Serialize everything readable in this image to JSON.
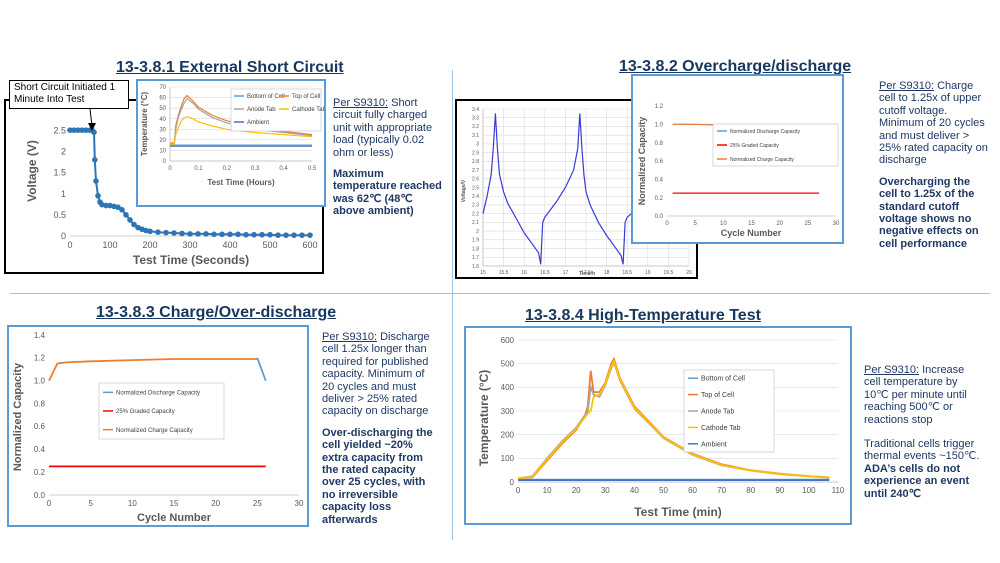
{
  "sections": {
    "s1": {
      "title": "13-3.8.1 External Short Circuit",
      "desc_prefix": "Per S9310:",
      "desc_text": " Short circuit fully charged unit with appropriate load (typically 0.02 ohm or less)",
      "desc_bold": "Maximum temperature reached was 62℃ (48℃ above ambient)"
    },
    "s2": {
      "title": "13-3.8.2 Overcharge/discharge",
      "desc_prefix": "Per S9310:",
      "desc_text": " Charge cell to 1.25x of upper cutoff voltage. Minimum of 20 cycles and must deliver > 25% rated capacity on discharge",
      "desc_bold": "Overcharging the cell to 1.25x of the standard cutoff voltage shows no negative effects on cell performance"
    },
    "s3": {
      "title": "13-3.8.3 Charge/Over-discharge",
      "desc_prefix": "Per S9310:",
      "desc_text": " Discharge cell 1.25x longer than required for published capacity. Minimum of 20 cycles and must deliver > 25% rated capacity on discharge",
      "desc_bold": "Over-discharging the cell yielded ~20% extra capacity from the rated capacity over 25 cycles, with no irreversible capacity loss afterwards"
    },
    "s4": {
      "title": "13-3.8.4 High-Temperature  Test",
      "desc_prefix": "Per S9310:",
      "desc_text": " Increase cell temperature by 10℃ per minute until reaching 500℃ or reactions stop",
      "desc_text2": "Traditional  cells trigger thermal events  ~150℃.",
      "desc_bold": "ADA’s  cells do not experience an event until 240℃"
    }
  },
  "callout": "Short Circuit Initiated 1 Minute Into Test",
  "colors": {
    "bottom": "#5b9bd5",
    "top": "#ed7d31",
    "anode": "#a5a5a5",
    "cathode": "#ffc000",
    "ambient": "#4472c4",
    "graded": "#ff0000",
    "voltage": "#2e75b6",
    "overvoltage": "#3a3ad6"
  },
  "chart_data": [
    {
      "id": "voltage",
      "type": "scatter",
      "xlabel": "Test Time (Seconds)",
      "ylabel": "Voltage (V)",
      "xlim": [
        0,
        600
      ],
      "ylim": [
        0,
        3
      ],
      "xticks": [
        "0",
        "100",
        "200",
        "300",
        "400",
        "500",
        "600"
      ],
      "yticks": [
        "0",
        "0.5",
        "1",
        "1.5",
        "2",
        "2.5"
      ],
      "series": [
        {
          "x": [
            0,
            10,
            20,
            30,
            40,
            50,
            55,
            60,
            62,
            65,
            70,
            75,
            80,
            90,
            100,
            110,
            120,
            130,
            140,
            150,
            160,
            170,
            180,
            190,
            200,
            220,
            240,
            260,
            280,
            300,
            320,
            340,
            360,
            380,
            400,
            420,
            440,
            460,
            480,
            500,
            520,
            540,
            560,
            580,
            600
          ],
          "y": [
            2.5,
            2.5,
            2.5,
            2.5,
            2.5,
            2.5,
            2.5,
            2.45,
            1.8,
            1.3,
            0.95,
            0.8,
            0.74,
            0.72,
            0.72,
            0.7,
            0.68,
            0.62,
            0.5,
            0.38,
            0.27,
            0.2,
            0.16,
            0.13,
            0.11,
            0.09,
            0.08,
            0.07,
            0.06,
            0.05,
            0.05,
            0.05,
            0.04,
            0.04,
            0.04,
            0.04,
            0.03,
            0.03,
            0.03,
            0.03,
            0.02,
            0.02,
            0.02,
            0.02,
            0.02
          ]
        }
      ]
    },
    {
      "id": "shortTemp",
      "type": "line",
      "xlabel": "Test Time (Hours)",
      "ylabel": "Temperature (°C)",
      "xlim": [
        0,
        0.5
      ],
      "ylim": [
        0,
        70
      ],
      "xticks": [
        "0",
        "0.1",
        "0.2",
        "0.3",
        "0.4",
        "0.5"
      ],
      "yticks": [
        "0",
        "10",
        "20",
        "30",
        "40",
        "50",
        "60",
        "70"
      ],
      "series": [
        {
          "name": "Bottom of Cell",
          "key": "bottom",
          "x": [
            0,
            0.015,
            0.02,
            0.5
          ],
          "y": [
            15,
            15,
            15,
            15
          ]
        },
        {
          "name": "Top of Cell",
          "key": "top",
          "x": [
            0,
            0.015,
            0.02,
            0.03,
            0.04,
            0.05,
            0.06,
            0.08,
            0.1,
            0.15,
            0.2,
            0.3,
            0.4,
            0.5
          ],
          "y": [
            17,
            17,
            33,
            44,
            52,
            59,
            62,
            57,
            51,
            43,
            38,
            32,
            28,
            25
          ]
        },
        {
          "name": "Anode Tab",
          "key": "anode",
          "x": [
            0,
            0.015,
            0.02,
            0.03,
            0.04,
            0.05,
            0.06,
            0.08,
            0.1,
            0.15,
            0.2,
            0.3,
            0.4,
            0.5
          ],
          "y": [
            16,
            16,
            30,
            42,
            49,
            55,
            59,
            55,
            49,
            41,
            36,
            30,
            27,
            24
          ]
        },
        {
          "name": "Cathode Tab",
          "key": "cathode",
          "x": [
            0,
            0.015,
            0.02,
            0.03,
            0.04,
            0.05,
            0.06,
            0.08,
            0.1,
            0.15,
            0.2,
            0.3,
            0.4,
            0.5
          ],
          "y": [
            16,
            16,
            25,
            32,
            38,
            41,
            42,
            40,
            37,
            33,
            30,
            27,
            25,
            23
          ]
        },
        {
          "name": "Ambient",
          "key": "ambient",
          "x": [
            0,
            0.5
          ],
          "y": [
            14,
            14
          ]
        }
      ]
    },
    {
      "id": "overVolt",
      "type": "line",
      "xlabel": "Time/h",
      "ylabel": "Voltage/V",
      "xlim": [
        15,
        20
      ],
      "ylim": [
        1.6,
        3.4
      ],
      "xticks": [
        "15",
        "15.5",
        "16",
        "16.5",
        "17",
        "17.5",
        "18",
        "18.5",
        "19",
        "19.5",
        "20"
      ],
      "yticks": [
        "1.6",
        "1.7",
        "1.8",
        "1.9",
        "2",
        "2.1",
        "2.2",
        "2.3",
        "2.4",
        "2.5",
        "2.6",
        "2.7",
        "2.8",
        "2.9",
        "3",
        "3.1",
        "3.2",
        "3.3",
        "3.4"
      ],
      "series": [
        {
          "key": "overvoltage",
          "x": [
            15,
            15.1,
            15.2,
            15.25,
            15.3,
            15.35,
            15.4,
            15.5,
            15.6,
            15.8,
            16.0,
            16.2,
            16.35,
            16.4,
            16.45,
            16.5,
            16.6,
            16.8,
            17.0,
            17.2,
            17.3,
            17.35,
            17.4,
            17.45,
            17.5,
            17.6,
            17.8,
            18.0,
            18.2,
            18.35,
            18.4,
            18.45,
            18.5,
            18.6,
            18.8
          ],
          "y": [
            2.2,
            2.4,
            2.65,
            2.95,
            3.35,
            2.95,
            2.65,
            2.45,
            2.32,
            2.15,
            1.98,
            1.85,
            1.75,
            1.62,
            2.1,
            2.16,
            2.22,
            2.35,
            2.5,
            2.7,
            2.95,
            3.35,
            2.95,
            2.65,
            2.45,
            2.3,
            2.1,
            1.95,
            1.82,
            1.72,
            1.62,
            2.1,
            2.16,
            2.2,
            2.3
          ]
        }
      ]
    },
    {
      "id": "overcharge",
      "type": "line",
      "xlabel": "Cycle Number",
      "ylabel": "Normalized Capacity",
      "xlim": [
        0,
        30
      ],
      "ylim": [
        0,
        1.2
      ],
      "xticks": [
        "0",
        "5",
        "10",
        "15",
        "20",
        "25",
        "30"
      ],
      "yticks": [
        "0.0",
        "0.2",
        "0.4",
        "0.6",
        "0.8",
        "1.0",
        "1.2"
      ],
      "series": [
        {
          "name": "Normalized Discharge Capacity",
          "key": "bottom",
          "x": [
            1,
            27
          ],
          "y": [
            1.0,
            0.99
          ]
        },
        {
          "name": "25% Graded Capacity",
          "key": "graded",
          "x": [
            1,
            27
          ],
          "y": [
            0.25,
            0.25
          ]
        },
        {
          "name": "Normalized Charge Capacity",
          "key": "top",
          "x": [
            1,
            5,
            10,
            15,
            20,
            25,
            27
          ],
          "y": [
            1.0,
            1.0,
            0.99,
            0.99,
            0.99,
            0.99,
            0.99
          ]
        }
      ]
    },
    {
      "id": "overdischarge",
      "type": "line",
      "xlabel": "Cycle Number",
      "ylabel": "Normalized Capacity",
      "xlim": [
        0,
        30
      ],
      "ylim": [
        0,
        1.4
      ],
      "xticks": [
        "0",
        "5",
        "10",
        "15",
        "20",
        "25",
        "30"
      ],
      "yticks": [
        "0.0",
        "0.2",
        "0.4",
        "0.6",
        "0.8",
        "1.0",
        "1.2",
        "1.4"
      ],
      "series": [
        {
          "name": "Normalized Discharge Capacity",
          "key": "bottom",
          "x": [
            25,
            26
          ],
          "y": [
            1.2,
            1.0
          ]
        },
        {
          "name": "25% Graded Capacity",
          "key": "graded",
          "x": [
            0,
            26
          ],
          "y": [
            0.25,
            0.25
          ]
        },
        {
          "name": "Normalized Charge Capacity",
          "key": "top",
          "x": [
            0,
            1,
            2,
            5,
            10,
            15,
            20,
            25
          ],
          "y": [
            1.0,
            1.15,
            1.16,
            1.17,
            1.18,
            1.19,
            1.19,
            1.19
          ]
        }
      ]
    },
    {
      "id": "highTemp",
      "type": "line",
      "xlabel": "Test Time (min)",
      "ylabel": "Temperature (°C)",
      "xlim": [
        0,
        110
      ],
      "ylim": [
        0,
        600
      ],
      "xticks": [
        "0",
        "10",
        "20",
        "30",
        "40",
        "50",
        "60",
        "70",
        "80",
        "90",
        "100",
        "110"
      ],
      "yticks": [
        "0",
        "100",
        "200",
        "300",
        "400",
        "500",
        "600"
      ],
      "series": [
        {
          "name": "Bottom of Cell",
          "key": "bottom",
          "x": [
            0,
            107
          ],
          "y": [
            10,
            10
          ]
        },
        {
          "name": "Top of Cell",
          "key": "top",
          "x": [
            0,
            5,
            10,
            15,
            20,
            23,
            24,
            25,
            26,
            28,
            30,
            32,
            33,
            35,
            40,
            50,
            60,
            70,
            80,
            90,
            100,
            107
          ],
          "y": [
            15,
            20,
            90,
            160,
            220,
            280,
            320,
            470,
            380,
            380,
            420,
            500,
            520,
            440,
            320,
            190,
            120,
            75,
            50,
            35,
            25,
            20
          ]
        },
        {
          "name": "Anode Tab",
          "key": "anode",
          "x": [
            0,
            5,
            10,
            15,
            20,
            24,
            25,
            26,
            28,
            30,
            32,
            33,
            35,
            40,
            50,
            60,
            70,
            80,
            90,
            100,
            107
          ],
          "y": [
            15,
            25,
            100,
            170,
            230,
            300,
            400,
            370,
            360,
            410,
            480,
            505,
            430,
            310,
            185,
            115,
            70,
            48,
            33,
            24,
            18
          ]
        },
        {
          "name": "Cathode Tab",
          "key": "cathode",
          "x": [
            0,
            5,
            10,
            15,
            20,
            24,
            25,
            26,
            28,
            30,
            32,
            33,
            35,
            40,
            50,
            60,
            70,
            80,
            90,
            100,
            107
          ],
          "y": [
            15,
            22,
            95,
            165,
            225,
            290,
            300,
            360,
            370,
            415,
            490,
            510,
            435,
            315,
            188,
            118,
            72,
            49,
            34,
            24,
            19
          ]
        },
        {
          "name": "Ambient",
          "key": "ambient",
          "x": [
            0,
            107
          ],
          "y": [
            8,
            8
          ]
        }
      ]
    }
  ]
}
